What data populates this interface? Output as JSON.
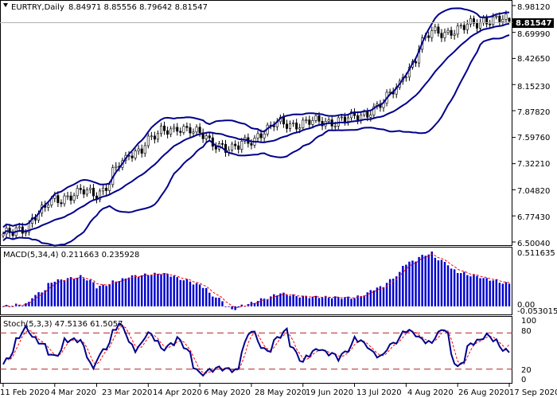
{
  "header": {
    "symbol": "EURTRY,Daily",
    "ohlc": "8.84971 8.85556 8.79642 8.81547"
  },
  "price_panel": {
    "last_price_tag": "8.81547",
    "y_ticks": [
      "8.98120",
      "8.69990",
      "8.42650",
      "8.15230",
      "7.87820",
      "7.59760",
      "7.32210",
      "7.04820",
      "6.77430",
      "6.50040"
    ]
  },
  "macd_panel": {
    "label": "MACD(5,34,4) 0.211663 0.235928",
    "y_ticks": [
      "0.511635",
      "0.00",
      "-0.053015"
    ]
  },
  "stoch_panel": {
    "label": "Stoch(5,3,3) 47.5136 61.5057",
    "y_ticks": [
      "100",
      "80",
      "20",
      "0"
    ]
  },
  "x_ticks": [
    "11 Feb 2020",
    "4 Mar 2020",
    "23 Mar 2020",
    "14 Apr 2020",
    "6 May 2020",
    "28 May 2020",
    "19 Jun 2020",
    "13 Jul 2020",
    "4 Aug 2020",
    "26 Aug 2020",
    "17 Sep 2020"
  ],
  "colors": {
    "candle": "#000000",
    "bollinger": "#00008b",
    "macd_histogram": "#0000cd",
    "macd_signal": "#ff0000",
    "stoch_main": "#00008b",
    "stoch_signal": "#ff0000",
    "stoch_levels": "#b22222",
    "price_tag_bg": "#000000"
  },
  "chart_data": [
    {
      "type": "candlestick",
      "title": "EURTRY,Daily",
      "indicator": "Bollinger Bands",
      "ylim": [
        6.5004,
        8.9812
      ],
      "x_range": [
        "11 Feb 2020",
        "17 Sep 2020"
      ],
      "close_anchors": [
        {
          "date": "11 Feb 2020",
          "close": 6.56
        },
        {
          "date": "20 Feb 2020",
          "close": 6.66
        },
        {
          "date": "4 Mar 2020",
          "close": 6.95
        },
        {
          "date": "16 Mar 2020",
          "close": 7.02
        },
        {
          "date": "23 Mar 2020",
          "close": 7.0
        },
        {
          "date": "1 Apr 2020",
          "close": 7.3
        },
        {
          "date": "14 Apr 2020",
          "close": 7.58
        },
        {
          "date": "27 Apr 2020",
          "close": 7.72
        },
        {
          "date": "6 May 2020",
          "close": 7.62
        },
        {
          "date": "20 May 2020",
          "close": 7.46
        },
        {
          "date": "28 May 2020",
          "close": 7.58
        },
        {
          "date": "10 Jun 2020",
          "close": 7.75
        },
        {
          "date": "19 Jun 2020",
          "close": 7.74
        },
        {
          "date": "13 Jul 2020",
          "close": 7.8
        },
        {
          "date": "27 Jul 2020",
          "close": 8.0
        },
        {
          "date": "4 Aug 2020",
          "close": 8.3
        },
        {
          "date": "14 Aug 2020",
          "close": 8.7
        },
        {
          "date": "26 Aug 2020",
          "close": 8.72
        },
        {
          "date": "7 Sep 2020",
          "close": 8.84
        },
        {
          "date": "17 Sep 2020",
          "close": 8.82
        }
      ],
      "last": {
        "open": 8.84971,
        "high": 8.85556,
        "low": 8.79642,
        "close": 8.81547
      }
    },
    {
      "type": "bar",
      "title": "MACD(5,34,4)",
      "main": 0.211663,
      "signal": 0.235928,
      "ylim": [
        -0.053015,
        0.511635
      ],
      "histogram_anchors": [
        {
          "date": "11 Feb 2020",
          "value": 0.0
        },
        {
          "date": "20 Feb 2020",
          "value": 0.02
        },
        {
          "date": "4 Mar 2020",
          "value": 0.24
        },
        {
          "date": "16 Mar 2020",
          "value": 0.28
        },
        {
          "date": "23 Mar 2020",
          "value": 0.18
        },
        {
          "date": "6 Apr 2020",
          "value": 0.28
        },
        {
          "date": "20 Apr 2020",
          "value": 0.31
        },
        {
          "date": "6 May 2020",
          "value": 0.2
        },
        {
          "date": "20 May 2020",
          "value": -0.03
        },
        {
          "date": "28 May 2020",
          "value": 0.03
        },
        {
          "date": "10 Jun 2020",
          "value": 0.12
        },
        {
          "date": "19 Jun 2020",
          "value": 0.09
        },
        {
          "date": "13 Jul 2020",
          "value": 0.08
        },
        {
          "date": "27 Jul 2020",
          "value": 0.22
        },
        {
          "date": "4 Aug 2020",
          "value": 0.4
        },
        {
          "date": "14 Aug 2020",
          "value": 0.5
        },
        {
          "date": "26 Aug 2020",
          "value": 0.32
        },
        {
          "date": "17 Sep 2020",
          "value": 0.21
        }
      ]
    },
    {
      "type": "line",
      "title": "Stoch(5,3,3)",
      "main": 47.5136,
      "signal": 61.5057,
      "ylim": [
        0,
        100
      ],
      "levels": [
        20,
        80
      ],
      "main_anchors": [
        {
          "date": "11 Feb 2020",
          "value": 28
        },
        {
          "date": "20 Feb 2020",
          "value": 88
        },
        {
          "date": "4 Mar 2020",
          "value": 40
        },
        {
          "date": "9 Mar 2020",
          "value": 68
        },
        {
          "date": "16 Mar 2020",
          "value": 68
        },
        {
          "date": "20 Mar 2020",
          "value": 18
        },
        {
          "date": "1 Apr 2020",
          "value": 95
        },
        {
          "date": "8 Apr 2020",
          "value": 52
        },
        {
          "date": "14 Apr 2020",
          "value": 80
        },
        {
          "date": "20 Apr 2020",
          "value": 52
        },
        {
          "date": "27 Apr 2020",
          "value": 72
        },
        {
          "date": "6 May 2020",
          "value": 12
        },
        {
          "date": "14 May 2020",
          "value": 22
        },
        {
          "date": "22 May 2020",
          "value": 18
        },
        {
          "date": "28 May 2020",
          "value": 86
        },
        {
          "date": "4 Jun 2020",
          "value": 48
        },
        {
          "date": "12 Jun 2020",
          "value": 85
        },
        {
          "date": "19 Jun 2020",
          "value": 30
        },
        {
          "date": "26 Jun 2020",
          "value": 55
        },
        {
          "date": "6 Jul 2020",
          "value": 38
        },
        {
          "date": "13 Jul 2020",
          "value": 72
        },
        {
          "date": "23 Jul 2020",
          "value": 40
        },
        {
          "date": "4 Aug 2020",
          "value": 85
        },
        {
          "date": "14 Aug 2020",
          "value": 62
        },
        {
          "date": "20 Aug 2020",
          "value": 88
        },
        {
          "date": "26 Aug 2020",
          "value": 22
        },
        {
          "date": "1 Sep 2020",
          "value": 62
        },
        {
          "date": "8 Sep 2020",
          "value": 76
        },
        {
          "date": "17 Sep 2020",
          "value": 47.5
        }
      ]
    }
  ]
}
